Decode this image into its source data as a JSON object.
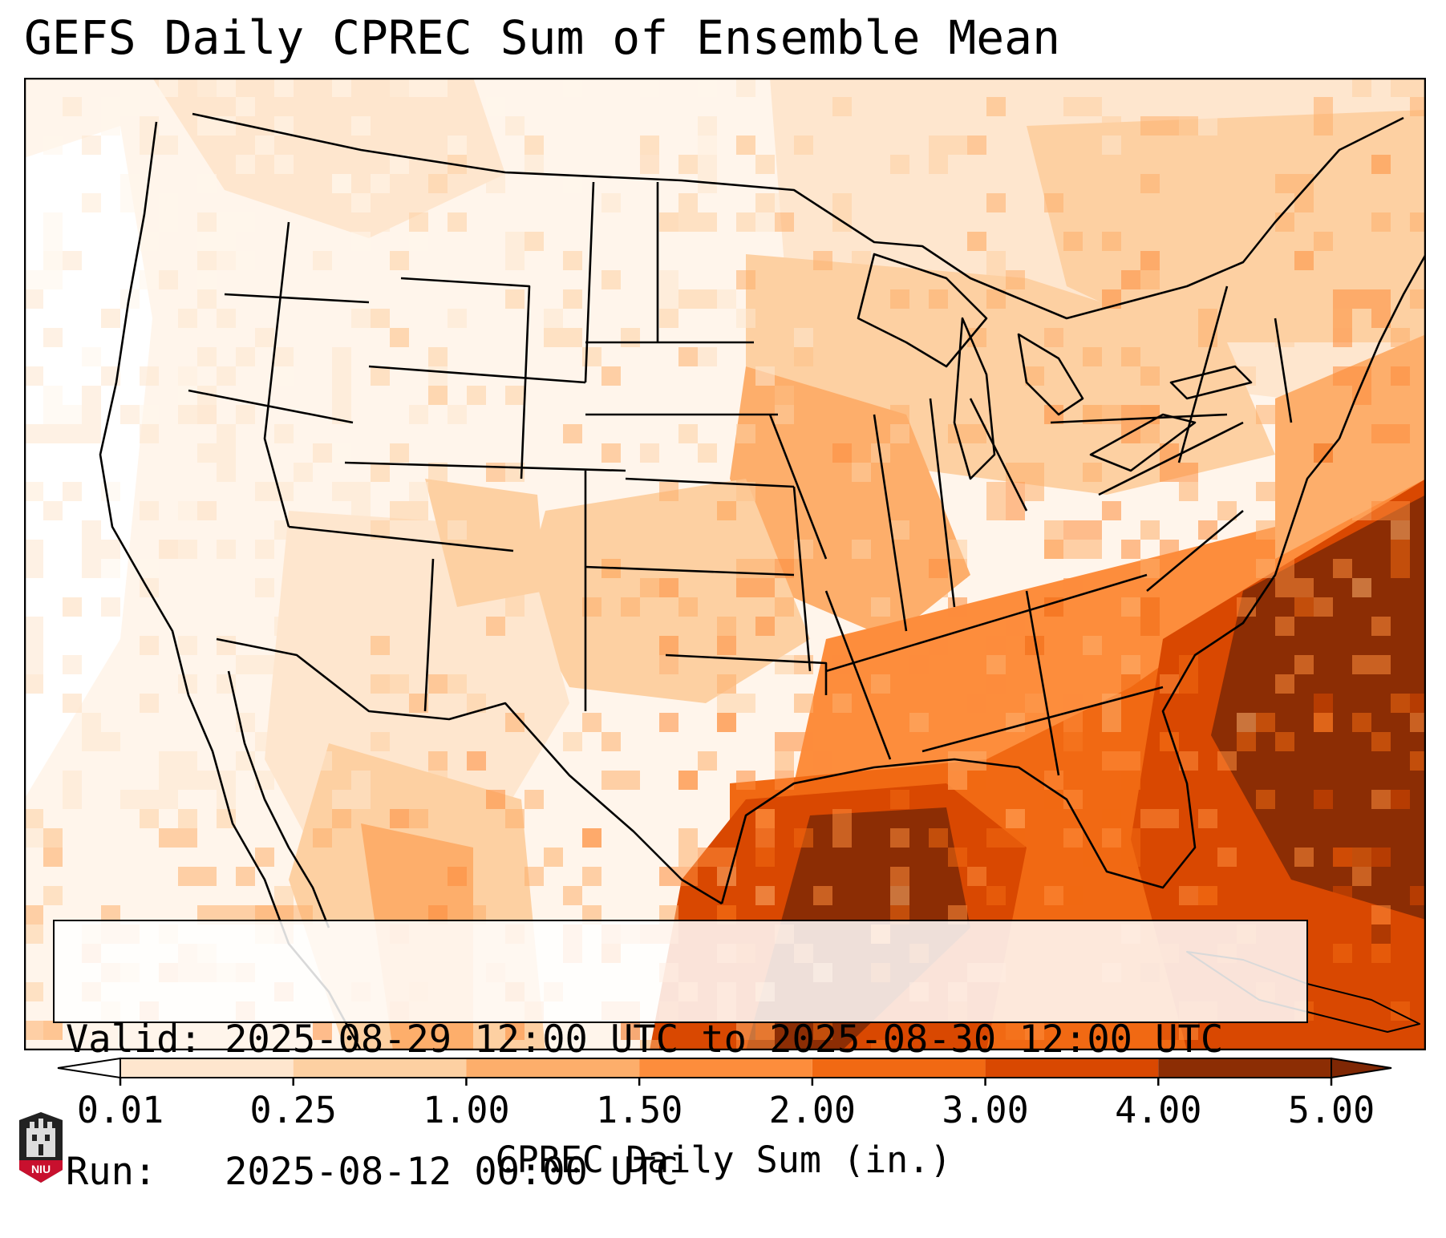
{
  "title": "GEFS Daily CPREC Sum of Ensemble Mean",
  "info": {
    "valid_line": "Valid: 2025-08-29 12:00 UTC to 2025-08-30 12:00 UTC",
    "run_line": "Run:   2025-08-12 00:00 UTC"
  },
  "colorbar": {
    "label": "CPREC Daily Sum (in.)",
    "ticks": [
      "0.01",
      "0.25",
      "1.00",
      "1.50",
      "2.00",
      "3.00",
      "4.00",
      "5.00"
    ],
    "colors": [
      "#fff5eb",
      "#fee6ce",
      "#fdd0a2",
      "#fdae6b",
      "#fd8d3c",
      "#f16913",
      "#d94801",
      "#8c2d04"
    ],
    "under_color": "#ffffff",
    "over_color": "#7f2704"
  },
  "logo": {
    "text": "NIU",
    "color": "#c8102e"
  }
}
